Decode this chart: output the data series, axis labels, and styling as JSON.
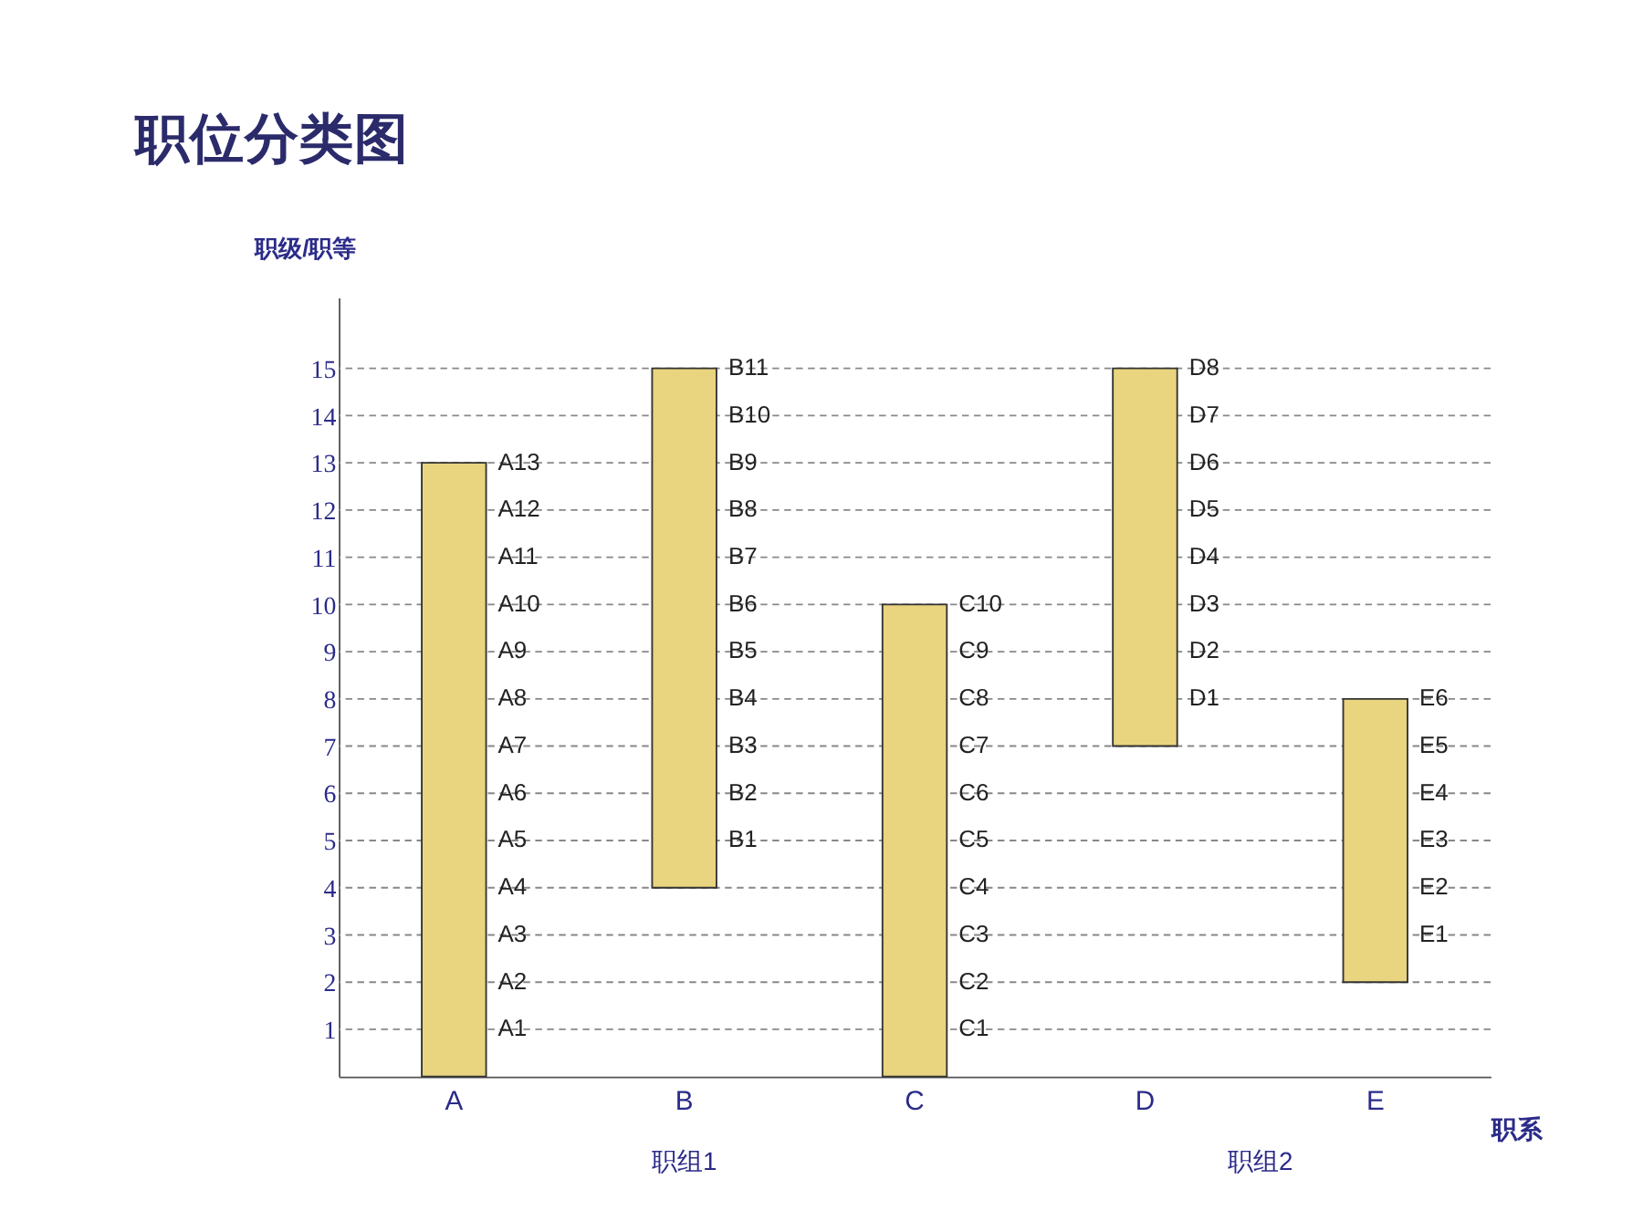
{
  "chart_data": {
    "type": "bar",
    "title": "职位分类图",
    "xlabel": "职系",
    "ylabel": "职级/职等",
    "categories": [
      "A",
      "B",
      "C",
      "D",
      "E"
    ],
    "values": [
      13,
      11,
      10,
      8,
      6
    ],
    "base": [
      0,
      4,
      0,
      7,
      2
    ],
    "color": "#e9d47f",
    "ylim": [
      0,
      16.5
    ],
    "yticks": [
      1,
      2,
      3,
      4,
      5,
      6,
      7,
      8,
      9,
      10,
      11,
      12,
      13,
      14,
      15
    ],
    "ref_lines": [
      {
        "axis": "y",
        "value": 1,
        "color": "#888888",
        "line_style": "dashed"
      },
      {
        "axis": "y",
        "value": 2,
        "color": "#888888",
        "line_style": "dashed"
      },
      {
        "axis": "y",
        "value": 3,
        "color": "#888888",
        "line_style": "dashed"
      },
      {
        "axis": "y",
        "value": 4,
        "color": "#888888",
        "line_style": "dashed"
      },
      {
        "axis": "y",
        "value": 5,
        "color": "#888888",
        "line_style": "dashed"
      },
      {
        "axis": "y",
        "value": 6,
        "color": "#888888",
        "line_style": "dashed"
      },
      {
        "axis": "y",
        "value": 7,
        "color": "#888888",
        "line_style": "dashed"
      },
      {
        "axis": "y",
        "value": 8,
        "color": "#888888",
        "line_style": "dashed"
      },
      {
        "axis": "y",
        "value": 9,
        "color": "#888888",
        "line_style": "dashed"
      },
      {
        "axis": "y",
        "value": 10,
        "color": "#888888",
        "line_style": "dashed"
      },
      {
        "axis": "y",
        "value": 11,
        "color": "#888888",
        "line_style": "dashed"
      },
      {
        "axis": "y",
        "value": 12,
        "color": "#888888",
        "line_style": "dashed"
      },
      {
        "axis": "y",
        "value": 13,
        "color": "#888888",
        "line_style": "dashed"
      },
      {
        "axis": "y",
        "value": 14,
        "color": "#888888",
        "line_style": "dashed"
      },
      {
        "axis": "y",
        "value": 15,
        "color": "#888888",
        "line_style": "dashed"
      }
    ],
    "annotations": [
      {
        "text": "A1",
        "x": "A",
        "y": 1
      },
      {
        "text": "A2",
        "x": "A",
        "y": 2
      },
      {
        "text": "A3",
        "x": "A",
        "y": 3
      },
      {
        "text": "A4",
        "x": "A",
        "y": 4
      },
      {
        "text": "A5",
        "x": "A",
        "y": 5
      },
      {
        "text": "A6",
        "x": "A",
        "y": 6
      },
      {
        "text": "A7",
        "x": "A",
        "y": 7
      },
      {
        "text": "A8",
        "x": "A",
        "y": 8
      },
      {
        "text": "A9",
        "x": "A",
        "y": 9
      },
      {
        "text": "A10",
        "x": "A",
        "y": 10
      },
      {
        "text": "A11",
        "x": "A",
        "y": 11
      },
      {
        "text": "A12",
        "x": "A",
        "y": 12
      },
      {
        "text": "A13",
        "x": "A",
        "y": 13
      },
      {
        "text": "B1",
        "x": "B",
        "y": 5
      },
      {
        "text": "B2",
        "x": "B",
        "y": 6
      },
      {
        "text": "B3",
        "x": "B",
        "y": 7
      },
      {
        "text": "B4",
        "x": "B",
        "y": 8
      },
      {
        "text": "B5",
        "x": "B",
        "y": 9
      },
      {
        "text": "B6",
        "x": "B",
        "y": 10
      },
      {
        "text": "B7",
        "x": "B",
        "y": 11
      },
      {
        "text": "B8",
        "x": "B",
        "y": 12
      },
      {
        "text": "B9",
        "x": "B",
        "y": 13
      },
      {
        "text": "B10",
        "x": "B",
        "y": 14
      },
      {
        "text": "B11",
        "x": "B",
        "y": 15
      },
      {
        "text": "C1",
        "x": "C",
        "y": 1
      },
      {
        "text": "C2",
        "x": "C",
        "y": 2
      },
      {
        "text": "C3",
        "x": "C",
        "y": 3
      },
      {
        "text": "C4",
        "x": "C",
        "y": 4
      },
      {
        "text": "C5",
        "x": "C",
        "y": 5
      },
      {
        "text": "C6",
        "x": "C",
        "y": 6
      },
      {
        "text": "C7",
        "x": "C",
        "y": 7
      },
      {
        "text": "C8",
        "x": "C",
        "y": 8
      },
      {
        "text": "C9",
        "x": "C",
        "y": 9
      },
      {
        "text": "C10",
        "x": "C",
        "y": 10
      },
      {
        "text": "D1",
        "x": "D",
        "y": 8
      },
      {
        "text": "D2",
        "x": "D",
        "y": 9
      },
      {
        "text": "D3",
        "x": "D",
        "y": 10
      },
      {
        "text": "D4",
        "x": "D",
        "y": 11
      },
      {
        "text": "D5",
        "x": "D",
        "y": 12
      },
      {
        "text": "D6",
        "x": "D",
        "y": 13
      },
      {
        "text": "D7",
        "x": "D",
        "y": 14
      },
      {
        "text": "D8",
        "x": "D",
        "y": 15
      },
      {
        "text": "E1",
        "x": "E",
        "y": 3
      },
      {
        "text": "E2",
        "x": "E",
        "y": 4
      },
      {
        "text": "E3",
        "x": "E",
        "y": 5
      },
      {
        "text": "E4",
        "x": "E",
        "y": 6
      },
      {
        "text": "E5",
        "x": "E",
        "y": 7
      },
      {
        "text": "E6",
        "x": "E",
        "y": 8
      },
      "职组1",
      "职组2"
    ]
  }
}
